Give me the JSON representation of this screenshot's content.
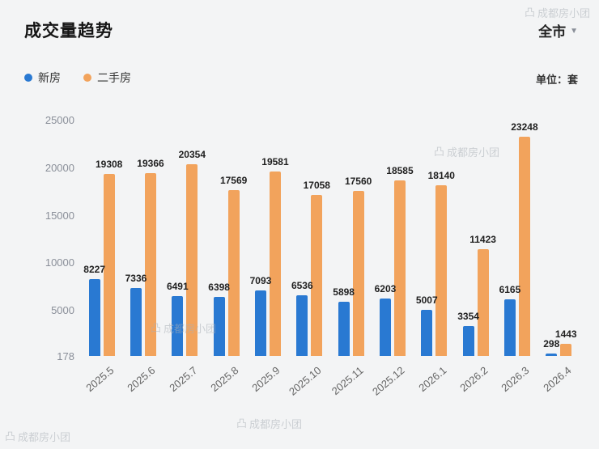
{
  "header": {
    "title": "成交量趋势",
    "scope": "全市",
    "dropdown_icon": "▼",
    "unit": "单位：套"
  },
  "legend": [
    {
      "label": "新房",
      "color": "#2979d2"
    },
    {
      "label": "二手房",
      "color": "#f2a35c"
    }
  ],
  "watermark": {
    "icon_glyph": "凸",
    "text": "成都房小团"
  },
  "chart_data": {
    "type": "bar",
    "title": "成交量趋势",
    "categories": [
      "2025.5",
      "2025.6",
      "2025.7",
      "2025.8",
      "2025.9",
      "2025.10",
      "2025.11",
      "2025.12",
      "2026.1",
      "2026.2",
      "2026.3",
      "2026.4"
    ],
    "series": [
      {
        "name": "新房",
        "color": "#2979d2",
        "values": [
          8227,
          7336,
          6491,
          6398,
          7093,
          6536,
          5898,
          6203,
          5007,
          3354,
          6165,
          298
        ]
      },
      {
        "name": "二手房",
        "color": "#f2a35c",
        "values": [
          19308,
          19366,
          20354,
          17569,
          19581,
          17058,
          17560,
          18585,
          18140,
          11423,
          23248,
          1443
        ]
      }
    ],
    "yticks": [
      25000,
      20000,
      15000,
      10000,
      5000,
      178
    ],
    "baseline": 178,
    "ymax": 25000,
    "xlabel": "",
    "ylabel": "",
    "grid": false,
    "legend_position": "top-left"
  }
}
